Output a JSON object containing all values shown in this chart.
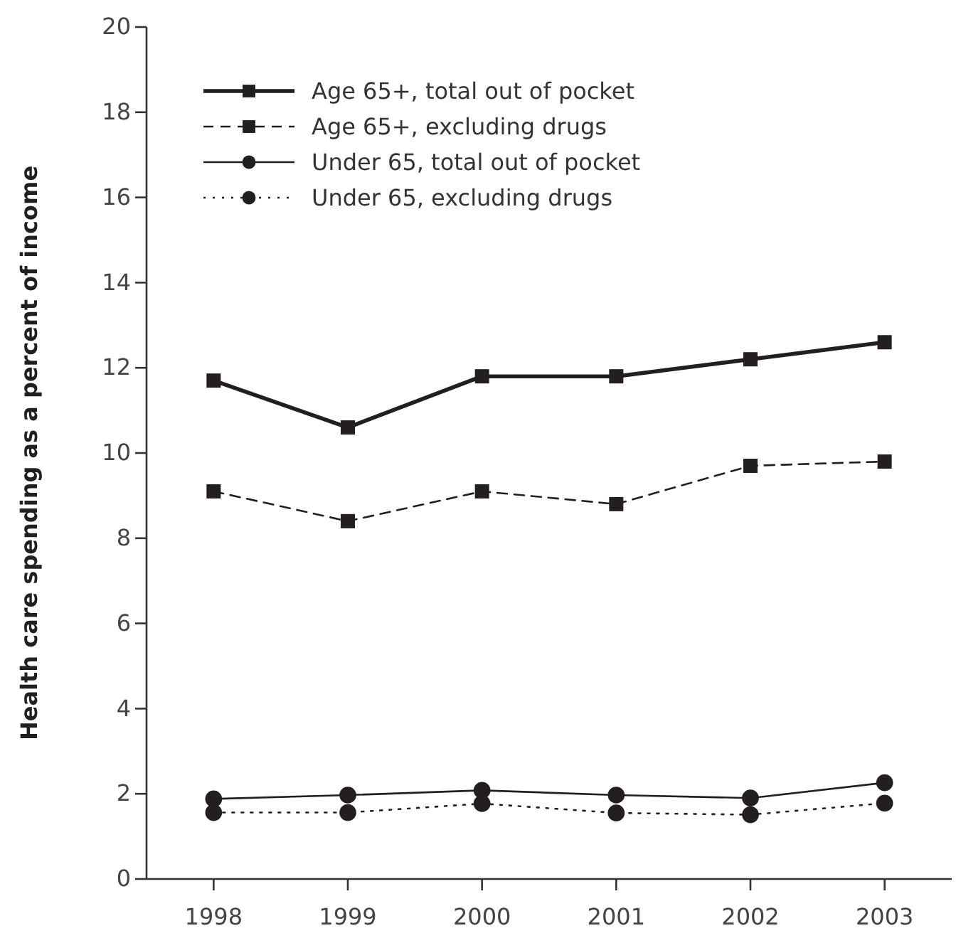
{
  "chart_data": {
    "type": "line",
    "ylabel": "Health care spending as a percent of income",
    "x": [
      1998,
      1999,
      2000,
      2001,
      2002,
      2003
    ],
    "xlim": [
      1997.5,
      2003.5
    ],
    "xticks": [
      1998,
      1999,
      2000,
      2001,
      2002,
      2003
    ],
    "ylim": [
      0,
      20
    ],
    "yticks": [
      0,
      2,
      4,
      6,
      8,
      10,
      12,
      14,
      16,
      18,
      20
    ],
    "grid": false,
    "legend": "top left",
    "series": [
      {
        "name": "Age 65+, total out of pocket",
        "color": "#231f20",
        "marker": "square",
        "line_style": "solid",
        "values": [
          11.7,
          10.6,
          11.8,
          11.8,
          12.2,
          12.6
        ]
      },
      {
        "name": "Age 65+, excluding drugs",
        "color": "#231f20",
        "marker": "square",
        "line_style": "dashed",
        "values": [
          9.1,
          8.4,
          9.1,
          8.8,
          9.7,
          9.8
        ]
      },
      {
        "name": "Under 65, total out of pocket",
        "color": "#231f20",
        "marker": "circle",
        "line_style": "solid",
        "values": [
          1.88,
          1.97,
          2.08,
          1.97,
          1.9,
          2.26
        ]
      },
      {
        "name": "Under 65, excluding drugs",
        "color": "#231f20",
        "marker": "circle",
        "line_style": "dotted",
        "values": [
          1.56,
          1.56,
          1.77,
          1.55,
          1.51,
          1.78
        ]
      }
    ]
  }
}
